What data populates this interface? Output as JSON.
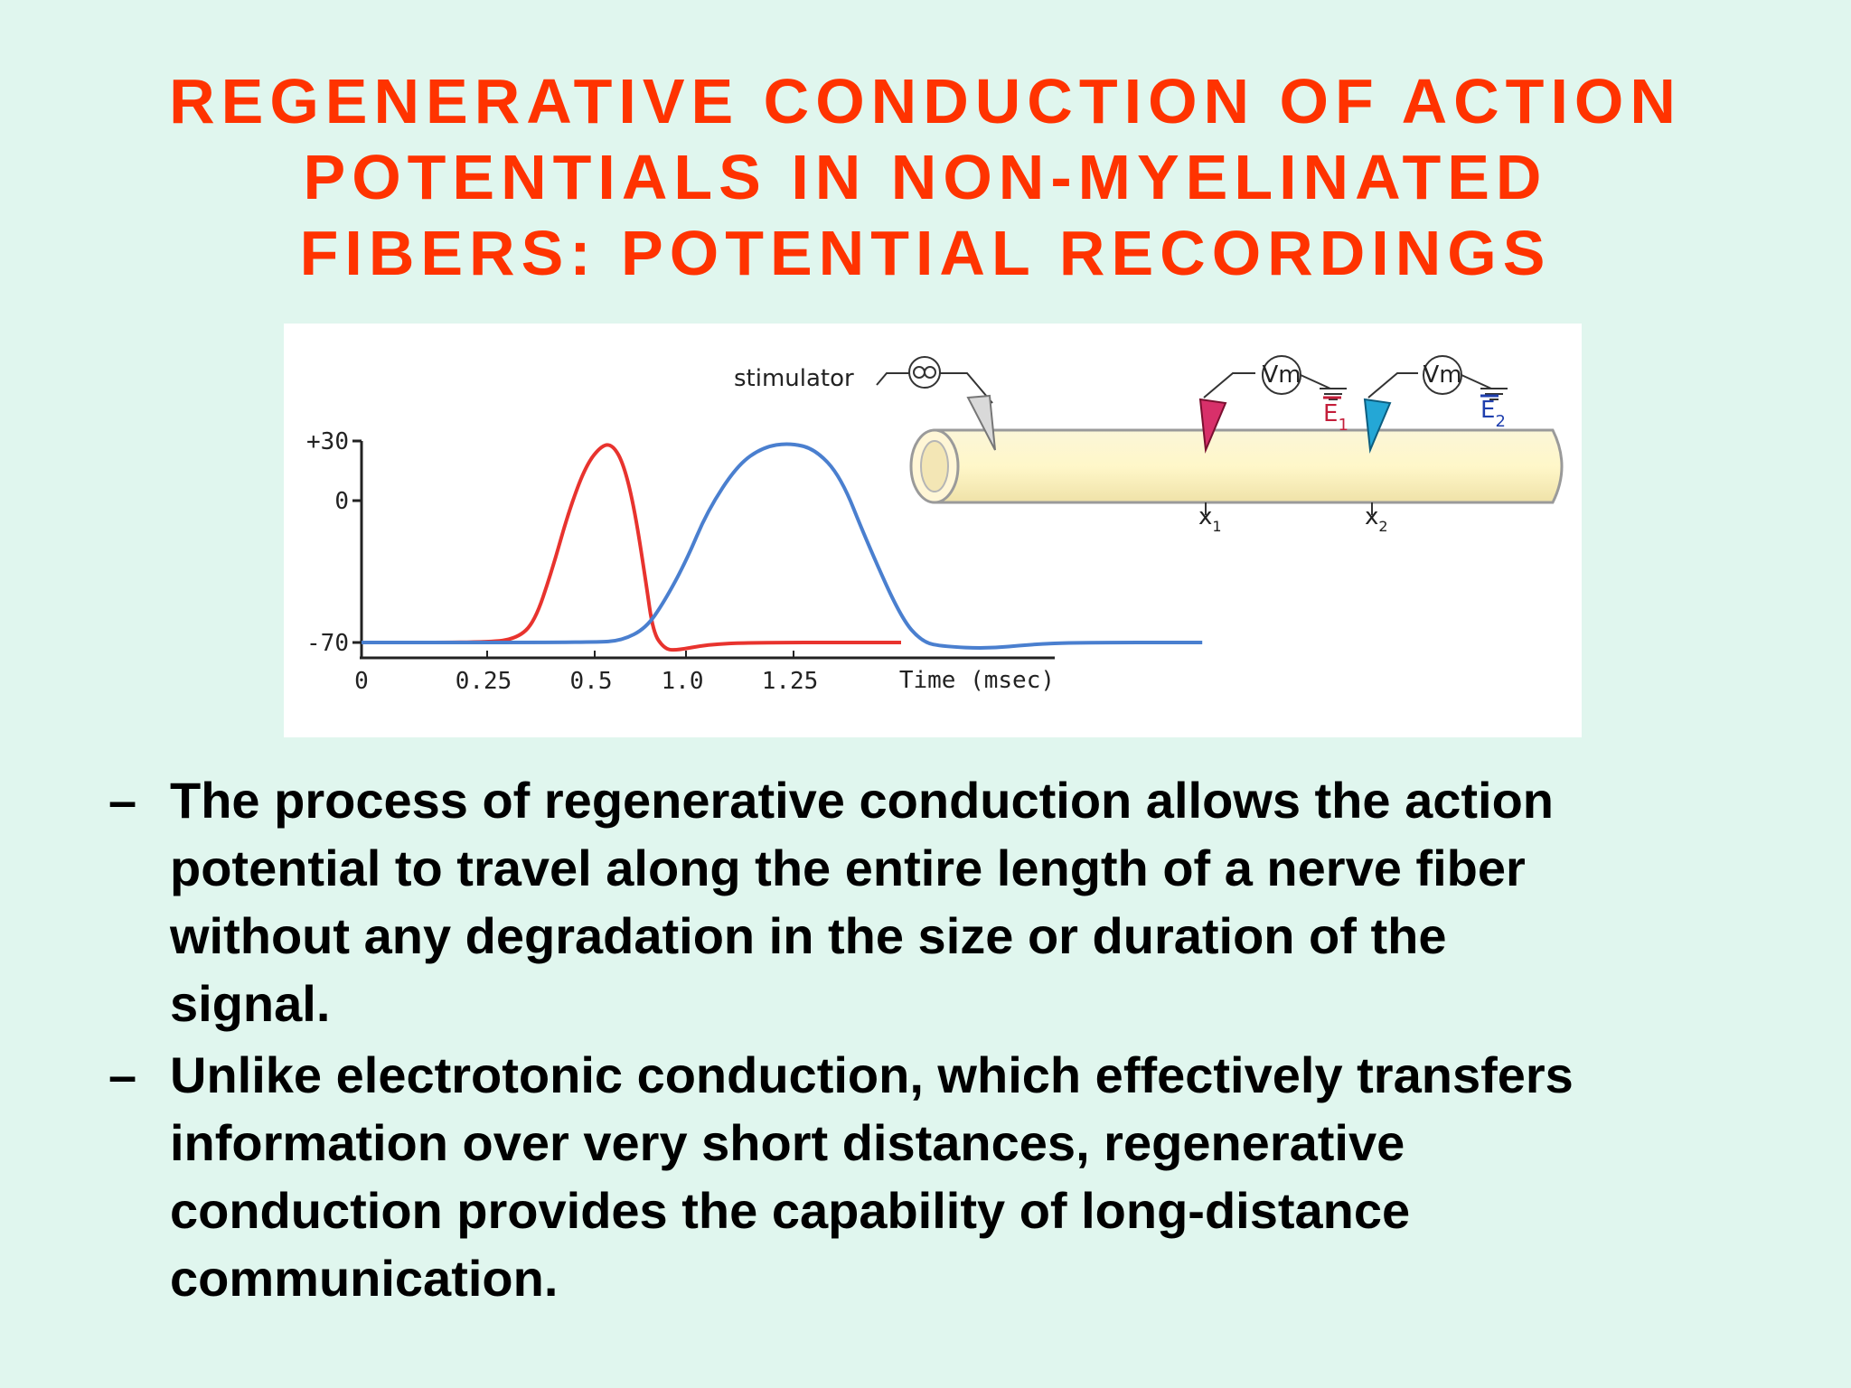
{
  "title": {
    "lines": [
      "REGENERATIVE CONDUCTION OF ACTION",
      "POTENTIALS IN NON-MYELINATED",
      "FIBERS: POTENTIAL RECORDINGS"
    ]
  },
  "figure": {
    "stimulator_label": "stimulator",
    "electrode_1": {
      "label": "E",
      "subscript": "1",
      "position": "x",
      "position_sub": "1",
      "meter": "Vm",
      "color": "#c41e3a"
    },
    "electrode_2": {
      "label": "E",
      "subscript": "2",
      "position": "x",
      "position_sub": "2",
      "meter": "Vm",
      "color": "#1fa3d8"
    },
    "chart_data": {
      "type": "line",
      "xlabel": "Time (msec)",
      "ylabel": "",
      "x_ticks": [
        "0",
        "0.25",
        "0.5",
        "1.0",
        "1.25"
      ],
      "y_ticks": [
        "+30",
        "0",
        "-70"
      ],
      "series": [
        {
          "color": "#e8332e",
          "points": [
            [
              0,
              -70
            ],
            [
              0.25,
              -70
            ],
            [
              0.32,
              -68
            ],
            [
              0.36,
              -60
            ],
            [
              0.4,
              -35
            ],
            [
              0.44,
              -5
            ],
            [
              0.48,
              18
            ],
            [
              0.54,
              28
            ],
            [
              0.6,
              28
            ],
            [
              0.66,
              18
            ],
            [
              0.72,
              -5
            ],
            [
              0.78,
              -40
            ],
            [
              0.82,
              -65
            ],
            [
              0.88,
              -73
            ],
            [
              0.94,
              -74
            ],
            [
              1.05,
              -71
            ],
            [
              1.15,
              -70
            ],
            [
              1.5,
              -70
            ]
          ]
        },
        {
          "color": "#4a7fcf",
          "points": [
            [
              0,
              -70
            ],
            [
              0.5,
              -70
            ],
            [
              0.65,
              -69
            ],
            [
              0.78,
              -63
            ],
            [
              0.88,
              -50
            ],
            [
              1.0,
              -30
            ],
            [
              1.05,
              -5
            ],
            [
              1.12,
              18
            ],
            [
              1.18,
              27
            ],
            [
              1.24,
              29
            ],
            [
              1.3,
              26
            ],
            [
              1.36,
              12
            ],
            [
              1.42,
              -20
            ],
            [
              1.5,
              -58
            ],
            [
              1.55,
              -70
            ],
            [
              1.6,
              -72
            ],
            [
              1.7,
              -73
            ],
            [
              1.8,
              -71
            ],
            [
              1.9,
              -70
            ],
            [
              2.2,
              -70
            ]
          ]
        }
      ]
    }
  },
  "bullets": [
    {
      "dash": "–",
      "lines": [
        "The process of regenerative conduction allows the action",
        "potential to travel along the entire length of a nerve fiber",
        "without any degradation in the size or duration of the",
        "signal."
      ]
    },
    {
      "dash": "–",
      "lines": [
        "Unlike electrotonic conduction, which effectively transfers",
        "information over very short distances, regenerative",
        "conduction provides the capability of long-distance",
        "communication."
      ]
    }
  ]
}
